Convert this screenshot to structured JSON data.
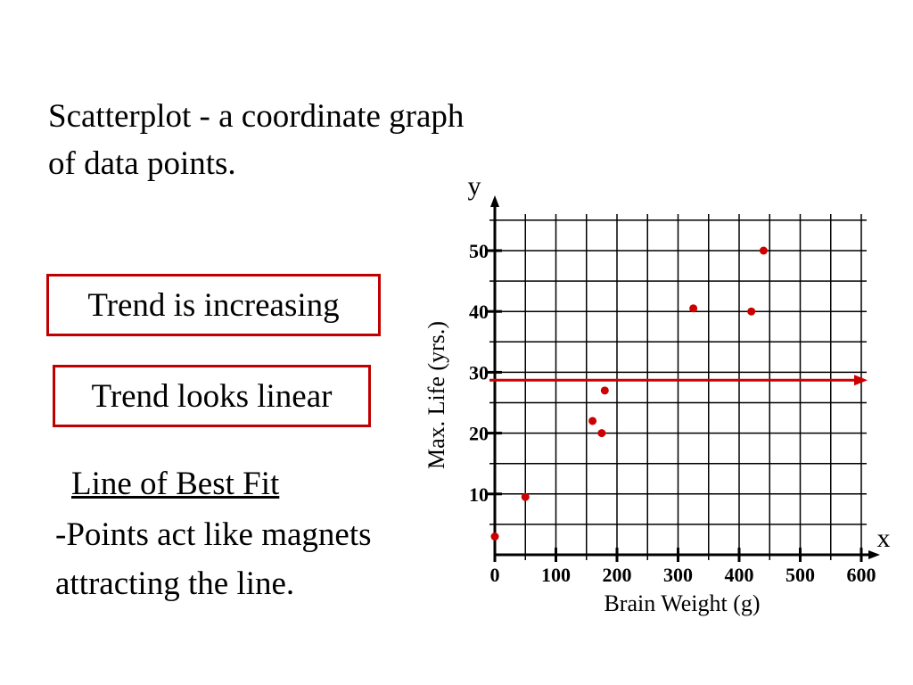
{
  "slide": {
    "intro_text": "Scatterplot - a coordinate graph of data points.",
    "trend_increasing": "Trend is increasing",
    "trend_linear": "Trend looks linear",
    "line_of_best_fit_heading": "Line of Best Fit",
    "line_of_best_fit_desc": "-Points act like magnets attracting the line."
  },
  "chart_data": {
    "type": "scatter",
    "title": "",
    "xlabel": "Brain Weight (g)",
    "ylabel": "Max. Life (yrs.)",
    "x_axis_letter": "x",
    "y_axis_letter": "y",
    "xlim": [
      0,
      600
    ],
    "ylim": [
      0,
      55
    ],
    "x_ticks": [
      0,
      100,
      200,
      300,
      400,
      500,
      600
    ],
    "y_ticks": [
      10,
      20,
      30,
      40,
      50
    ],
    "grid": true,
    "points": [
      {
        "x": 0,
        "y": 3
      },
      {
        "x": 50,
        "y": 9.5
      },
      {
        "x": 160,
        "y": 22
      },
      {
        "x": 175,
        "y": 20
      },
      {
        "x": 180,
        "y": 27
      },
      {
        "x": 325,
        "y": 40.5
      },
      {
        "x": 420,
        "y": 40
      },
      {
        "x": 440,
        "y": 50
      }
    ],
    "horizontal_line": {
      "y": 28.7
    },
    "colors": {
      "points": "#cc0000",
      "line": "#cc0000",
      "grid": "#000000"
    }
  }
}
